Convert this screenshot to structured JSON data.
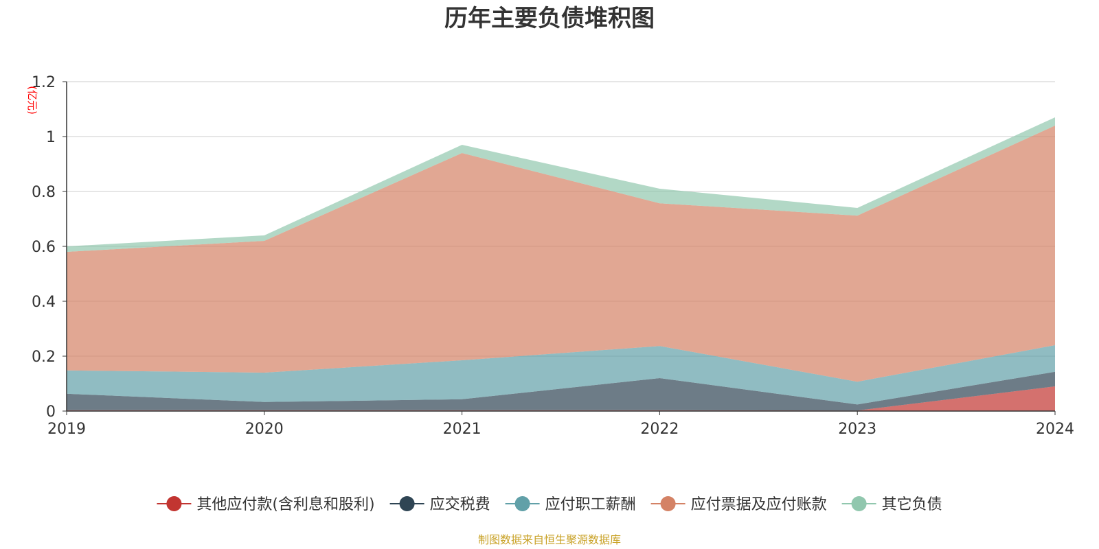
{
  "chart_data": {
    "type": "area",
    "stacked": true,
    "title": "历年主要负债堆积图",
    "y_unit": "(亿元)",
    "x": [
      "2019",
      "2020",
      "2021",
      "2022",
      "2023",
      "2024"
    ],
    "ylim": [
      0,
      1.2
    ],
    "y_ticks": [
      "0",
      "0.2",
      "0.4",
      "0.6",
      "0.8",
      "1",
      "1.2"
    ],
    "grid": true,
    "legend_position": "bottom",
    "series": [
      {
        "name": "其他应付款(含利息和股利)",
        "color": "#c23531",
        "values": [
          0.003,
          0.003,
          0.003,
          0.003,
          0.002,
          0.09
        ]
      },
      {
        "name": "应交税费",
        "color": "#2f4554",
        "values": [
          0.06,
          0.03,
          0.04,
          0.117,
          0.022,
          0.053
        ]
      },
      {
        "name": "应付职工薪酬",
        "color": "#61a0a8",
        "values": [
          0.085,
          0.107,
          0.142,
          0.117,
          0.083,
          0.097
        ]
      },
      {
        "name": "应付票据及应付账款",
        "color": "#d48265",
        "values": [
          0.432,
          0.48,
          0.755,
          0.52,
          0.605,
          0.8
        ]
      },
      {
        "name": "其它负债",
        "color": "#91c7ae",
        "values": [
          0.02,
          0.02,
          0.03,
          0.053,
          0.028,
          0.03
        ]
      }
    ],
    "source_note": "制图数据来自恒生聚源数据库"
  },
  "colors": {
    "unit_label": "#ff0000",
    "source_note": "#c9a227",
    "grid": "#cccccc",
    "axis": "#333333"
  }
}
